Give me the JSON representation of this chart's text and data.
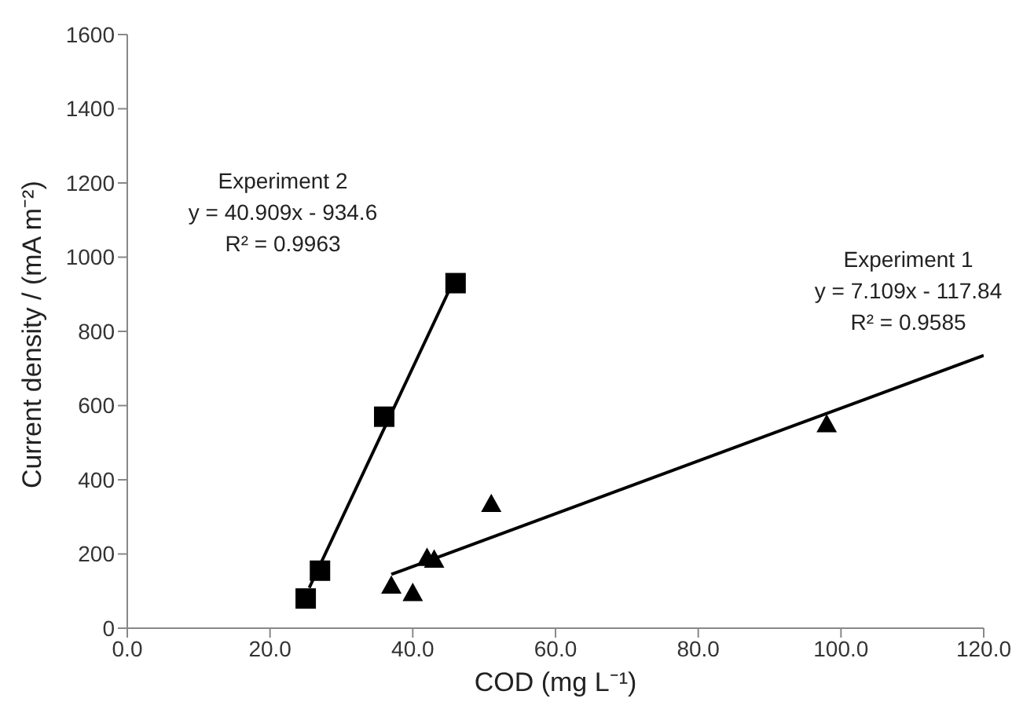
{
  "chart_data": {
    "type": "scatter",
    "xlabel": "COD (mg L⁻¹)",
    "ylabel": "Current density / (mA m⁻²)",
    "xlim": [
      0,
      120
    ],
    "xticks": [
      {
        "value": 0,
        "label": "0.0"
      },
      {
        "value": 20,
        "label": "20.0"
      },
      {
        "value": 40,
        "label": "40.0"
      },
      {
        "value": 60,
        "label": "60.0"
      },
      {
        "value": 80,
        "label": "80.0"
      },
      {
        "value": 100,
        "label": "100.0"
      },
      {
        "value": 120,
        "label": "120.0"
      }
    ],
    "ylim": [
      0,
      1600
    ],
    "yticks": [
      0,
      200,
      400,
      600,
      800,
      1000,
      1200,
      1400,
      1600
    ],
    "grid": false,
    "legend": false,
    "series": [
      {
        "marker": "triangle",
        "color": "#000000",
        "x": [
          37,
          40,
          42,
          43,
          51,
          98
        ],
        "values": [
          115,
          95,
          190,
          185,
          335,
          550
        ]
      },
      {
        "marker": "square",
        "color": "#000000",
        "x": [
          25,
          27,
          36,
          46
        ],
        "values": [
          80,
          155,
          570,
          930
        ]
      },
      {
        "type": "line",
        "marker": "none",
        "color": "#000000",
        "x": [
          37,
          120
        ],
        "values": [
          145,
          735
        ]
      },
      {
        "type": "line",
        "marker": "none",
        "color": "#000000",
        "x": [
          25.5,
          45.5
        ],
        "values": [
          109,
          927
        ]
      }
    ],
    "annotations": [
      "Experiment 2\ny = 40.909x - 934.6\nR² = 0.9963",
      "Experiment 1\ny = 7.109x - 117.84\nR² = 0.9585"
    ]
  }
}
